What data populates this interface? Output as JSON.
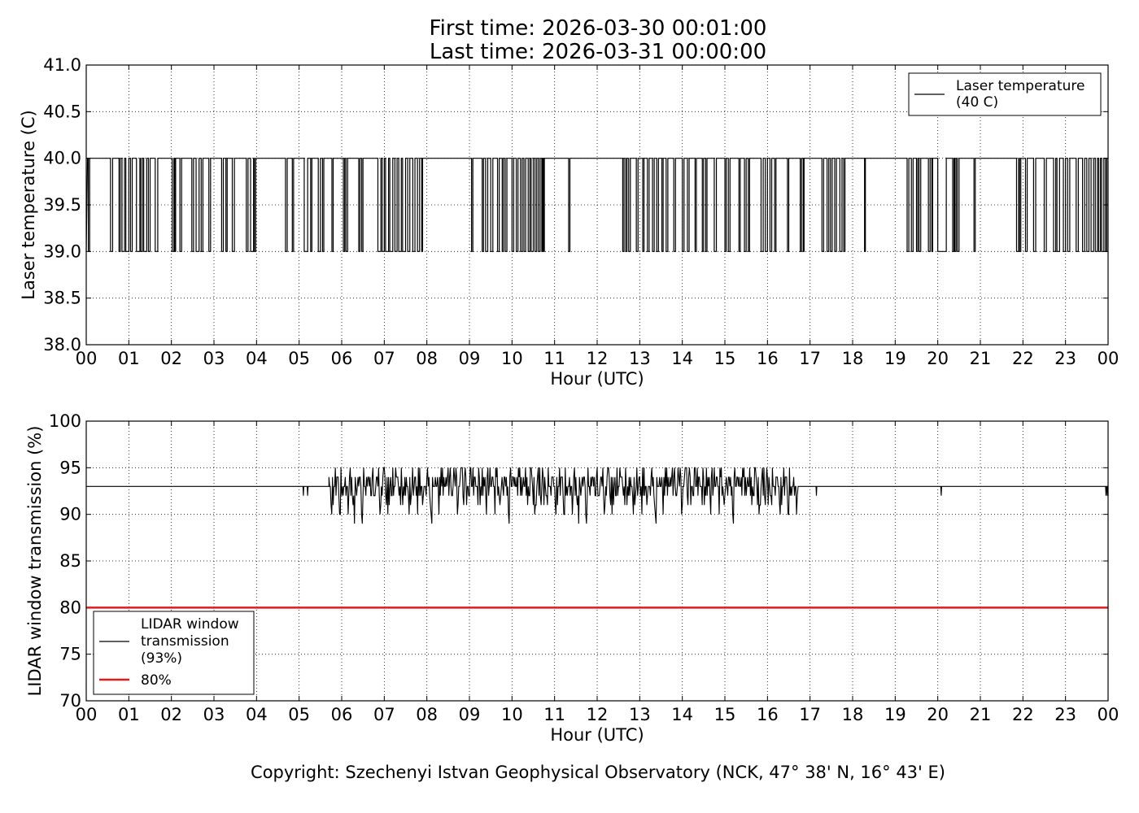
{
  "header": {
    "title_line1": "First time: 2026-03-30 00:01:00",
    "title_line2": "Last time: 2026-03-31 00:00:00"
  },
  "footer": {
    "copyright": "Copyright: Szechenyi Istvan Geophysical Observatory (NCK, 47° 38' N, 16° 43' E)"
  },
  "chart_data": [
    {
      "type": "line",
      "title": "",
      "xlabel": "Hour (UTC)",
      "ylabel": "Laser temperature (C)",
      "xlim": [
        0,
        24
      ],
      "ylim": [
        38.0,
        41.0
      ],
      "x_ticks": [
        "00",
        "01",
        "02",
        "03",
        "04",
        "05",
        "06",
        "07",
        "08",
        "09",
        "10",
        "11",
        "12",
        "13",
        "14",
        "15",
        "16",
        "17",
        "18",
        "19",
        "20",
        "21",
        "22",
        "23",
        "00"
      ],
      "y_ticks": [
        "38.0",
        "38.5",
        "39.0",
        "39.5",
        "40.0",
        "40.5",
        "41.0"
      ],
      "grid": true,
      "legend_position": "top-right",
      "series": [
        {
          "name": "Laser temperature\n(40 C)",
          "color": "#000000",
          "baseline": 40.0,
          "low_value": 39.0,
          "note_values": "Signal alternates between 40.0 and 39.0",
          "drops_to_39": [
            [
              0.05,
              0.08
            ],
            [
              0.57,
              0.62
            ],
            [
              0.77,
              0.8
            ],
            [
              0.84,
              0.9
            ],
            [
              0.93,
              1.0
            ],
            [
              1.04,
              1.08
            ],
            [
              1.18,
              1.26
            ],
            [
              1.28,
              1.32
            ],
            [
              1.35,
              1.42
            ],
            [
              1.46,
              1.5
            ],
            [
              1.62,
              1.68
            ],
            [
              2.02,
              2.06
            ],
            [
              2.08,
              2.1
            ],
            [
              2.2,
              2.24
            ],
            [
              2.48,
              2.52
            ],
            [
              2.58,
              2.65
            ],
            [
              2.7,
              2.74
            ],
            [
              2.88,
              2.92
            ],
            [
              3.18,
              3.22
            ],
            [
              3.28,
              3.31
            ],
            [
              3.43,
              3.48
            ],
            [
              3.76,
              3.8
            ],
            [
              3.86,
              3.93
            ],
            [
              3.95,
              3.98
            ],
            [
              4.68,
              4.72
            ],
            [
              4.84,
              4.87
            ],
            [
              5.12,
              5.2
            ],
            [
              5.27,
              5.3
            ],
            [
              5.45,
              5.5
            ],
            [
              5.55,
              5.58
            ],
            [
              5.77,
              5.8
            ],
            [
              6.04,
              6.07
            ],
            [
              6.1,
              6.14
            ],
            [
              6.4,
              6.43
            ],
            [
              6.47,
              6.5
            ],
            [
              6.85,
              6.92
            ],
            [
              6.95,
              7.0
            ],
            [
              7.03,
              7.1
            ],
            [
              7.13,
              7.2
            ],
            [
              7.25,
              7.3
            ],
            [
              7.34,
              7.4
            ],
            [
              7.43,
              7.5
            ],
            [
              7.55,
              7.6
            ],
            [
              7.67,
              7.72
            ],
            [
              7.78,
              7.83
            ],
            [
              7.88,
              7.9
            ],
            [
              9.05,
              9.08
            ],
            [
              9.3,
              9.33
            ],
            [
              9.38,
              9.43
            ],
            [
              9.5,
              9.55
            ],
            [
              9.66,
              9.7
            ],
            [
              9.77,
              9.8
            ],
            [
              9.84,
              9.88
            ],
            [
              10.0,
              10.04
            ],
            [
              10.1,
              10.14
            ],
            [
              10.2,
              10.24
            ],
            [
              10.28,
              10.32
            ],
            [
              10.38,
              10.42
            ],
            [
              10.45,
              10.5
            ],
            [
              10.54,
              10.58
            ],
            [
              10.62,
              10.66
            ],
            [
              10.7,
              10.72
            ],
            [
              10.74,
              10.76
            ],
            [
              11.33,
              11.36
            ],
            [
              12.6,
              12.63
            ],
            [
              12.67,
              12.7
            ],
            [
              12.74,
              12.78
            ],
            [
              12.92,
              12.96
            ],
            [
              13.07,
              13.1
            ],
            [
              13.18,
              13.22
            ],
            [
              13.3,
              13.34
            ],
            [
              13.4,
              13.44
            ],
            [
              13.52,
              13.55
            ],
            [
              13.62,
              13.66
            ],
            [
              13.8,
              13.84
            ],
            [
              14.0,
              14.04
            ],
            [
              14.12,
              14.16
            ],
            [
              14.3,
              14.33
            ],
            [
              14.47,
              14.5
            ],
            [
              14.55,
              14.58
            ],
            [
              14.75,
              14.8
            ],
            [
              15.0,
              15.03
            ],
            [
              15.08,
              15.12
            ],
            [
              15.33,
              15.36
            ],
            [
              15.46,
              15.5
            ],
            [
              15.55,
              15.58
            ],
            [
              15.85,
              15.9
            ],
            [
              15.95,
              16.0
            ],
            [
              16.06,
              16.1
            ],
            [
              16.17,
              16.2
            ],
            [
              16.47,
              16.5
            ],
            [
              16.77,
              16.8
            ],
            [
              16.84,
              16.86
            ],
            [
              17.28,
              17.32
            ],
            [
              17.4,
              17.44
            ],
            [
              17.48,
              17.52
            ],
            [
              17.58,
              17.62
            ],
            [
              17.7,
              17.75
            ],
            [
              17.79,
              17.82
            ],
            [
              18.28,
              18.3
            ],
            [
              19.28,
              19.32
            ],
            [
              19.38,
              19.42
            ],
            [
              19.5,
              19.53
            ],
            [
              19.56,
              19.6
            ],
            [
              19.78,
              19.82
            ],
            [
              19.86,
              19.88
            ],
            [
              20.0,
              20.2
            ],
            [
              20.35,
              20.38
            ],
            [
              20.4,
              20.43
            ],
            [
              20.46,
              20.5
            ],
            [
              20.85,
              20.88
            ],
            [
              21.85,
              21.9
            ],
            [
              21.92,
              21.95
            ],
            [
              22.06,
              22.1
            ],
            [
              22.25,
              22.3
            ],
            [
              22.5,
              22.55
            ],
            [
              22.72,
              22.77
            ],
            [
              22.8,
              22.86
            ],
            [
              22.95,
              23.0
            ],
            [
              23.05,
              23.1
            ],
            [
              23.25,
              23.3
            ],
            [
              23.4,
              23.45
            ],
            [
              23.5,
              23.55
            ],
            [
              23.6,
              23.66
            ],
            [
              23.7,
              23.75
            ],
            [
              23.78,
              23.82
            ],
            [
              23.85,
              23.9
            ],
            [
              23.94,
              23.97
            ]
          ]
        }
      ]
    },
    {
      "type": "line",
      "title": "",
      "xlabel": "Hour (UTC)",
      "ylabel": "LIDAR window transmission (%)",
      "xlim": [
        0,
        24
      ],
      "ylim": [
        70,
        100
      ],
      "x_ticks": [
        "00",
        "01",
        "02",
        "03",
        "04",
        "05",
        "06",
        "07",
        "08",
        "09",
        "10",
        "11",
        "12",
        "13",
        "14",
        "15",
        "16",
        "17",
        "18",
        "19",
        "20",
        "21",
        "22",
        "23",
        "00"
      ],
      "y_ticks": [
        "70",
        "75",
        "80",
        "85",
        "90",
        "95",
        "100"
      ],
      "grid": true,
      "legend_position": "bottom-left",
      "series": [
        {
          "name": "LIDAR window\ntransmission\n(93%)",
          "color": "#000000",
          "baseline": 93,
          "dips": [
            [
              5.1,
              92
            ],
            [
              5.2,
              92
            ],
            [
              17.15,
              92
            ],
            [
              20.08,
              92
            ],
            [
              23.95,
              92
            ],
            [
              23.98,
              92
            ]
          ],
          "noisy_range": [
            5.7,
            16.7
          ],
          "noisy_values": [
            94,
            93,
            92,
            94,
            93,
            95,
            92,
            93,
            94,
            91,
            93,
            94,
            95,
            92,
            93,
            94,
            92,
            90,
            93,
            94,
            95,
            91,
            92,
            93,
            89,
            94,
            93,
            92,
            95,
            90,
            93,
            94,
            92,
            95,
            91,
            93,
            94,
            90,
            93,
            95,
            92,
            94,
            93,
            91,
            95,
            92,
            93,
            94,
            90,
            95,
            93,
            92,
            94,
            93,
            95,
            91,
            94,
            92,
            93,
            95,
            94,
            92,
            93,
            91,
            94,
            95,
            92,
            93,
            94,
            92,
            93,
            94,
            92,
            93,
            94,
            93,
            92,
            94,
            93
          ]
        },
        {
          "name": "80%",
          "color": "#e41a1c",
          "constant": 80
        }
      ]
    }
  ]
}
